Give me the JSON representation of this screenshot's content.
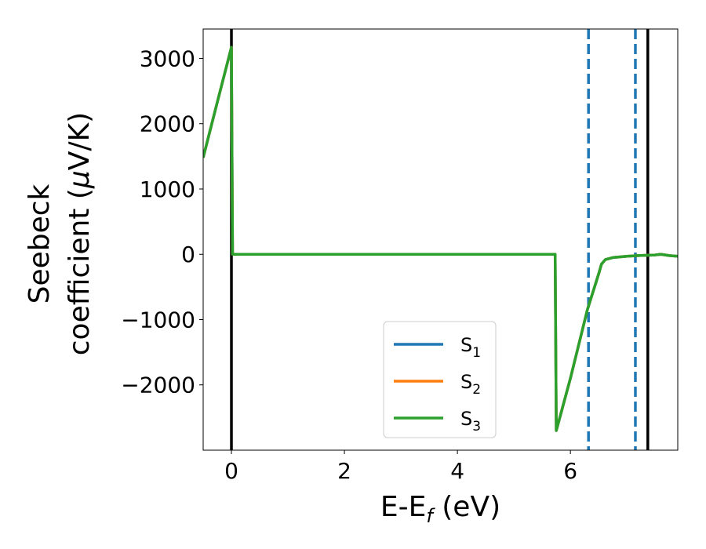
{
  "chart_data": {
    "type": "line",
    "title": "",
    "xlabel": "E-E",
    "xlabel_sub": "f",
    "xlabel_unit": " (eV)",
    "ylabel_line1": "Seebeck",
    "ylabel_line2": "coefficient  (",
    "ylabel_mu": "μ",
    "ylabel_unit": "V/K)",
    "xlim": [
      -0.5,
      7.9
    ],
    "ylim": [
      -3000,
      3450
    ],
    "xticks": [
      0,
      2,
      4,
      6
    ],
    "xtick_labels": [
      "0",
      "2",
      "4",
      "6"
    ],
    "yticks": [
      3000,
      2000,
      1000,
      0,
      -1000,
      -2000
    ],
    "ytick_labels": [
      "3000",
      "2000",
      "1000",
      "0",
      "−1000",
      "−2000"
    ],
    "grid": false,
    "legend_position": "lower-center",
    "series": [
      {
        "name": "S",
        "name_sub": "1",
        "color": "#1f77b4",
        "x": [
          -0.5,
          -0.25,
          0.0,
          0.02,
          1.0,
          2.0,
          3.0,
          4.0,
          5.0,
          5.73,
          5.75,
          6.0,
          6.3,
          6.5,
          6.55,
          6.62,
          6.75,
          7.0,
          7.2,
          7.5,
          7.6,
          7.75,
          7.9
        ],
        "y": [
          1480,
          2330,
          3170,
          0,
          0,
          0,
          0,
          0,
          0,
          0,
          -2700,
          -1900,
          -850,
          -300,
          -150,
          -80,
          -50,
          -30,
          -20,
          -10,
          0,
          -20,
          -30
        ]
      },
      {
        "name": "S",
        "name_sub": "2",
        "color": "#ff7f0e",
        "x": [
          -0.5,
          -0.25,
          0.0,
          0.02,
          1.0,
          2.0,
          3.0,
          4.0,
          5.0,
          5.73,
          5.75,
          6.0,
          6.3,
          6.5,
          6.55,
          6.62,
          6.75,
          7.0,
          7.2,
          7.5,
          7.6,
          7.75,
          7.9
        ],
        "y": [
          1480,
          2330,
          3170,
          0,
          0,
          0,
          0,
          0,
          0,
          0,
          -2700,
          -1900,
          -850,
          -300,
          -150,
          -80,
          -50,
          -30,
          -20,
          -10,
          0,
          -20,
          -30
        ]
      },
      {
        "name": "S",
        "name_sub": "3",
        "color": "#2ca02c",
        "x": [
          -0.5,
          -0.25,
          0.0,
          0.02,
          1.0,
          2.0,
          3.0,
          4.0,
          5.0,
          5.73,
          5.75,
          6.0,
          6.3,
          6.5,
          6.55,
          6.62,
          6.75,
          7.0,
          7.2,
          7.5,
          7.6,
          7.75,
          7.9
        ],
        "y": [
          1480,
          2330,
          3170,
          0,
          0,
          0,
          0,
          0,
          0,
          0,
          -2700,
          -1900,
          -850,
          -300,
          -150,
          -80,
          -50,
          -30,
          -20,
          -10,
          0,
          -20,
          -30
        ]
      }
    ],
    "vlines": [
      {
        "x": 0.0,
        "style": "solid",
        "color": "#000000"
      },
      {
        "x": 6.32,
        "style": "dashed",
        "color": "#1f77b4"
      },
      {
        "x": 7.15,
        "style": "dashed",
        "color": "#1f77b4"
      },
      {
        "x": 7.37,
        "style": "solid",
        "color": "#000000"
      }
    ]
  }
}
